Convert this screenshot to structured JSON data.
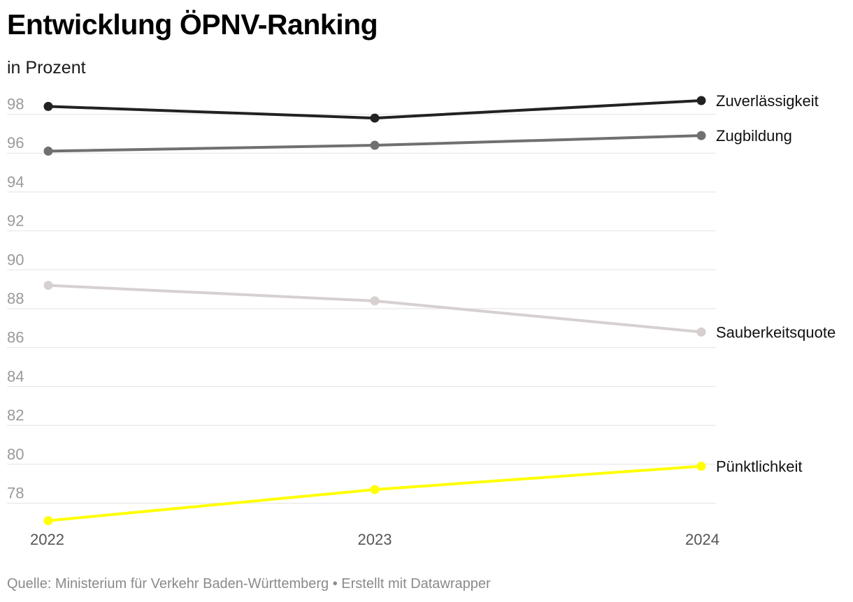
{
  "header": {
    "title": "Entwicklung ÖPNV-Ranking",
    "subtitle": "in Prozent"
  },
  "footer": {
    "source": "Quelle: Ministerium für Verkehr Baden-Württemberg • Erstellt mit Datawrapper"
  },
  "chart_data": {
    "type": "line",
    "title": "Entwicklung ÖPNV-Ranking",
    "subtitle": "in Prozent",
    "xlabel": "",
    "ylabel": "",
    "x": [
      "2022",
      "2023",
      "2024"
    ],
    "ylim": [
      77,
      99
    ],
    "yticks": [
      78,
      80,
      82,
      84,
      86,
      88,
      90,
      92,
      94,
      96,
      98
    ],
    "grid": true,
    "legend": "direct labels at line ends (right)",
    "series": [
      {
        "name": "Zuverlässigkeit",
        "values": [
          98.4,
          97.8,
          98.7
        ],
        "color": "#222222"
      },
      {
        "name": "Zugbildung",
        "values": [
          96.1,
          96.4,
          96.9
        ],
        "color": "#707070"
      },
      {
        "name": "Sauberkeitsquote",
        "values": [
          89.2,
          88.4,
          86.8
        ],
        "color": "#d6d0d0"
      },
      {
        "name": "Pünktlichkeit",
        "values": [
          77.1,
          78.7,
          79.9
        ],
        "color": "#ffff00"
      }
    ],
    "source": "Quelle: Ministerium für Verkehr Baden-Württemberg • Erstellt mit Datawrapper"
  }
}
